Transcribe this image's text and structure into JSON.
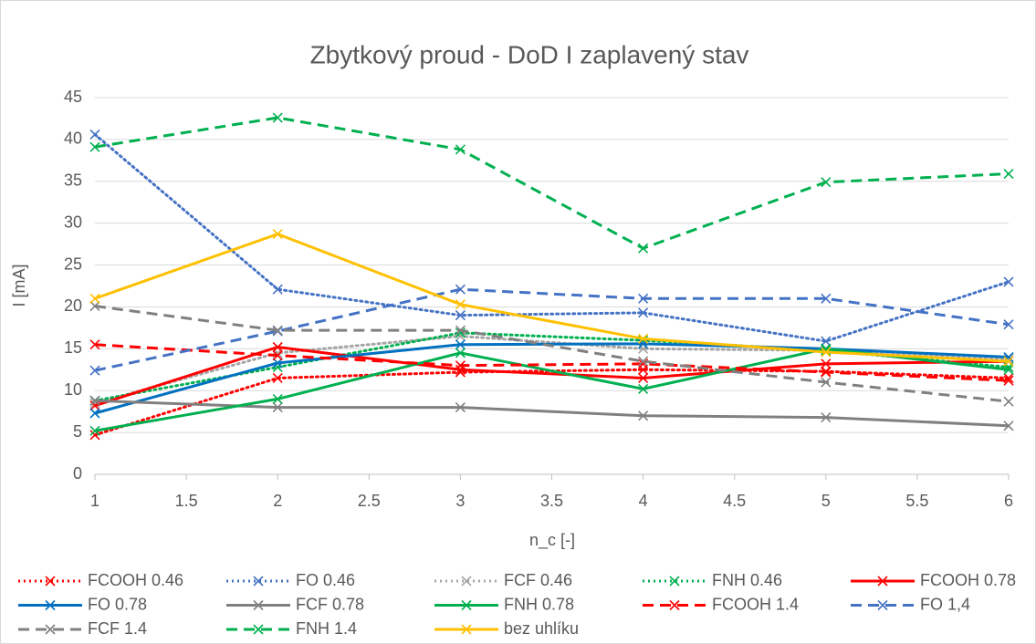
{
  "chart_data": {
    "type": "line",
    "title": "Zbytkový proud - DoD I zaplavený stav",
    "x_label": "n_c [-]",
    "y_label": "I [mA]",
    "x": [
      1,
      2,
      3,
      4,
      5,
      6
    ],
    "xlim": [
      1,
      6
    ],
    "xticks": [
      1,
      1.5,
      2,
      2.5,
      3,
      3.5,
      4,
      4.5,
      5,
      5.5,
      6
    ],
    "ylim": [
      0,
      45
    ],
    "yticks": [
      0,
      5,
      10,
      15,
      20,
      25,
      30,
      35,
      40,
      45
    ],
    "grid": true,
    "legend": "bottom",
    "series": [
      {
        "name": "FCOOH 0.46",
        "color": "#ff0000",
        "dash": "dotted",
        "values": [
          4.7,
          11.5,
          12.2,
          12.5,
          12.3,
          11.5
        ]
      },
      {
        "name": "FO 0.46",
        "color": "#4472c4",
        "dash": "dotted",
        "values": [
          40.6,
          22.1,
          19.0,
          19.3,
          15.9,
          23.0
        ]
      },
      {
        "name": "FCF 0.46",
        "color": "#a5a5a5",
        "dash": "dotted",
        "values": [
          8.5,
          14.5,
          16.5,
          15.0,
          14.8,
          13.8
        ]
      },
      {
        "name": "FNH 0.46",
        "color": "#00b050",
        "dash": "dotted",
        "values": [
          8.8,
          12.8,
          16.9,
          16.0,
          14.8,
          12.8
        ]
      },
      {
        "name": "FCOOH 0.78",
        "color": "#ff0000",
        "dash": "solid",
        "values": [
          8.2,
          15.2,
          12.5,
          11.5,
          13.2,
          13.5
        ]
      },
      {
        "name": "FO 0.78",
        "color": "#0070c0",
        "dash": "solid",
        "values": [
          7.3,
          13.3,
          15.5,
          15.6,
          15.0,
          14.0
        ]
      },
      {
        "name": "FCF 0.78",
        "color": "#808080",
        "dash": "solid",
        "values": [
          8.8,
          8.0,
          8.0,
          7.0,
          6.8,
          5.8
        ]
      },
      {
        "name": "FNH 0.78",
        "color": "#00b050",
        "dash": "solid",
        "values": [
          5.2,
          9.0,
          14.5,
          10.2,
          15.0,
          12.5
        ]
      },
      {
        "name": "FCOOH 1.4",
        "color": "#ff0000",
        "dash": "dashed",
        "values": [
          15.5,
          14.2,
          13.0,
          13.2,
          12.2,
          11.2
        ]
      },
      {
        "name": "FO 1,4",
        "color": "#4472c4",
        "dash": "dashed",
        "values": [
          12.4,
          17.1,
          22.1,
          21.0,
          21.0,
          17.9
        ]
      },
      {
        "name": "FCF 1.4",
        "color": "#808080",
        "dash": "dashed",
        "values": [
          20.1,
          17.2,
          17.2,
          13.5,
          11.0,
          8.7
        ]
      },
      {
        "name": "FNH 1.4",
        "color": "#00b050",
        "dash": "dashed",
        "values": [
          39.1,
          42.6,
          38.8,
          27.0,
          34.9,
          35.9
        ]
      },
      {
        "name": "bez uhlíku",
        "color": "#ffc000",
        "dash": "solid",
        "values": [
          21.0,
          28.7,
          20.3,
          16.2,
          14.6,
          13.5
        ]
      }
    ]
  }
}
